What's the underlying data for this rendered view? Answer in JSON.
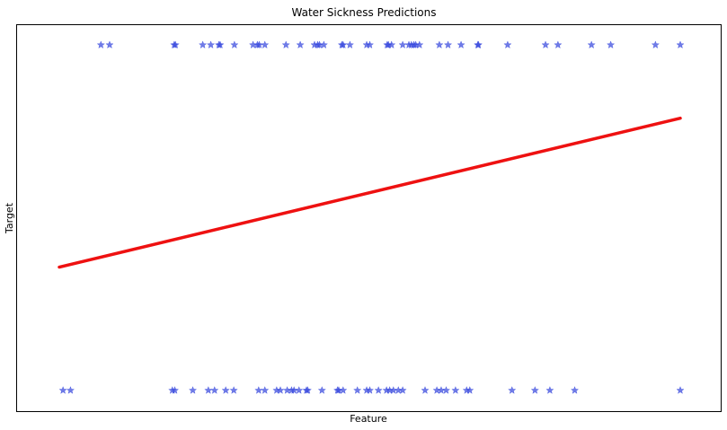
{
  "chart_data": {
    "type": "scatter",
    "title": "Water Sickness Predictions",
    "xlabel": "Feature",
    "ylabel": "Target",
    "xlim": [
      0,
      1
    ],
    "ylim": [
      -0.06,
      1.06
    ],
    "grid": false,
    "ticks_visible": false,
    "series": [
      {
        "kind": "scatter",
        "marker": "star",
        "color": "#3344dd",
        "alpha": 0.7,
        "points": [
          [
            0.067,
            1
          ],
          [
            0.081,
            1
          ],
          [
            0.185,
            1
          ],
          [
            0.187,
            1
          ],
          [
            0.231,
            1
          ],
          [
            0.244,
            1
          ],
          [
            0.257,
            1
          ],
          [
            0.259,
            1
          ],
          [
            0.282,
            1
          ],
          [
            0.312,
            1
          ],
          [
            0.319,
            1
          ],
          [
            0.322,
            1
          ],
          [
            0.331,
            1
          ],
          [
            0.365,
            1
          ],
          [
            0.388,
            1
          ],
          [
            0.411,
            1
          ],
          [
            0.416,
            1
          ],
          [
            0.419,
            1
          ],
          [
            0.426,
            1
          ],
          [
            0.455,
            1
          ],
          [
            0.457,
            1
          ],
          [
            0.468,
            1
          ],
          [
            0.495,
            1
          ],
          [
            0.5,
            1
          ],
          [
            0.528,
            1
          ],
          [
            0.53,
            1
          ],
          [
            0.535,
            1
          ],
          [
            0.553,
            1
          ],
          [
            0.563,
            1
          ],
          [
            0.567,
            1
          ],
          [
            0.571,
            1
          ],
          [
            0.574,
            1
          ],
          [
            0.58,
            1
          ],
          [
            0.612,
            1
          ],
          [
            0.626,
            1
          ],
          [
            0.647,
            1
          ],
          [
            0.674,
            1
          ],
          [
            0.675,
            1
          ],
          [
            0.722,
            1
          ],
          [
            0.783,
            1
          ],
          [
            0.803,
            1
          ],
          [
            0.857,
            1
          ],
          [
            0.888,
            1
          ],
          [
            1.0,
            1
          ],
          [
            0.96,
            1
          ],
          [
            0.006,
            0
          ],
          [
            0.018,
            0
          ],
          [
            0.182,
            0
          ],
          [
            0.186,
            0
          ],
          [
            0.215,
            0
          ],
          [
            0.24,
            0
          ],
          [
            0.25,
            0
          ],
          [
            0.268,
            0
          ],
          [
            0.281,
            0
          ],
          [
            0.321,
            0
          ],
          [
            0.331,
            0
          ],
          [
            0.35,
            0
          ],
          [
            0.356,
            0
          ],
          [
            0.367,
            0
          ],
          [
            0.374,
            0
          ],
          [
            0.378,
            0
          ],
          [
            0.386,
            0
          ],
          [
            0.398,
            0
          ],
          [
            0.4,
            0
          ],
          [
            0.423,
            0
          ],
          [
            0.448,
            0
          ],
          [
            0.45,
            0
          ],
          [
            0.457,
            0
          ],
          [
            0.48,
            0
          ],
          [
            0.495,
            0
          ],
          [
            0.5,
            0
          ],
          [
            0.514,
            0
          ],
          [
            0.527,
            0
          ],
          [
            0.532,
            0
          ],
          [
            0.538,
            0
          ],
          [
            0.546,
            0
          ],
          [
            0.553,
            0
          ],
          [
            0.589,
            0
          ],
          [
            0.608,
            0
          ],
          [
            0.615,
            0
          ],
          [
            0.623,
            0
          ],
          [
            0.638,
            0
          ],
          [
            0.656,
            0
          ],
          [
            0.661,
            0
          ],
          [
            0.729,
            0
          ],
          [
            0.766,
            0
          ],
          [
            0.79,
            0
          ],
          [
            0.83,
            0
          ],
          [
            1.0,
            0
          ]
        ]
      },
      {
        "kind": "line",
        "color": "#ee1111",
        "x": [
          0,
          1
        ],
        "y": [
          0.357,
          0.788
        ]
      }
    ]
  }
}
